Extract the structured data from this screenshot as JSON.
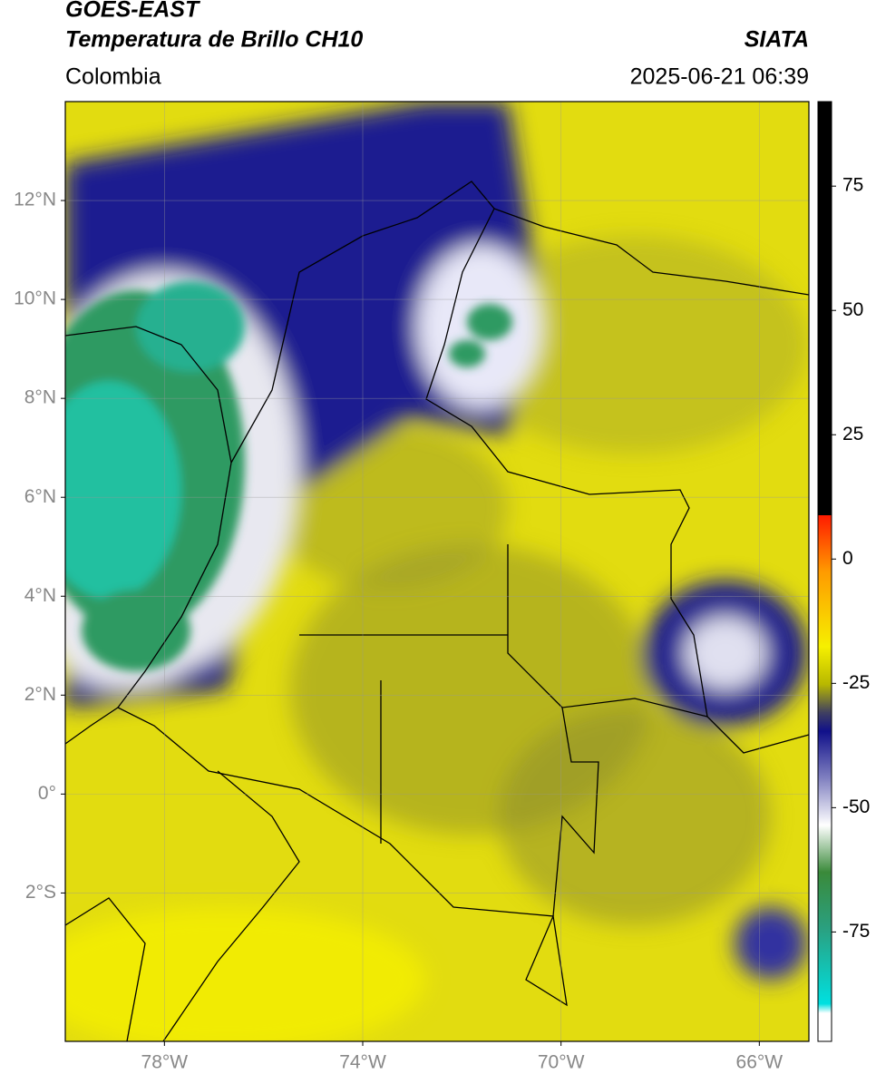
{
  "header": {
    "title": "GOES-EAST",
    "subtitle": "Temperatura de Brillo CH10",
    "source": "SIATA",
    "region": "Colombia",
    "timestamp": "2025-06-21 06:39"
  },
  "map": {
    "xlim": [
      -80,
      -65
    ],
    "ylim": [
      -5,
      14
    ],
    "xticks": [
      {
        "value": -78,
        "label": "78°W"
      },
      {
        "value": -74,
        "label": "74°W"
      },
      {
        "value": -70,
        "label": "70°W"
      },
      {
        "value": -66,
        "label": "66°W"
      }
    ],
    "yticks": [
      {
        "value": 12,
        "label": "12°N"
      },
      {
        "value": 10,
        "label": "10°N"
      },
      {
        "value": 8,
        "label": "8°N"
      },
      {
        "value": 6,
        "label": "6°N"
      },
      {
        "value": 4,
        "label": "4°N"
      },
      {
        "value": 2,
        "label": "2°N"
      },
      {
        "value": 0,
        "label": "0°"
      },
      {
        "value": -2,
        "label": "2°S"
      }
    ],
    "grid": true
  },
  "colorbar": {
    "clim": [
      -97,
      92
    ],
    "ticks": [
      75,
      50,
      25,
      0,
      -25,
      -50,
      -75
    ]
  }
}
